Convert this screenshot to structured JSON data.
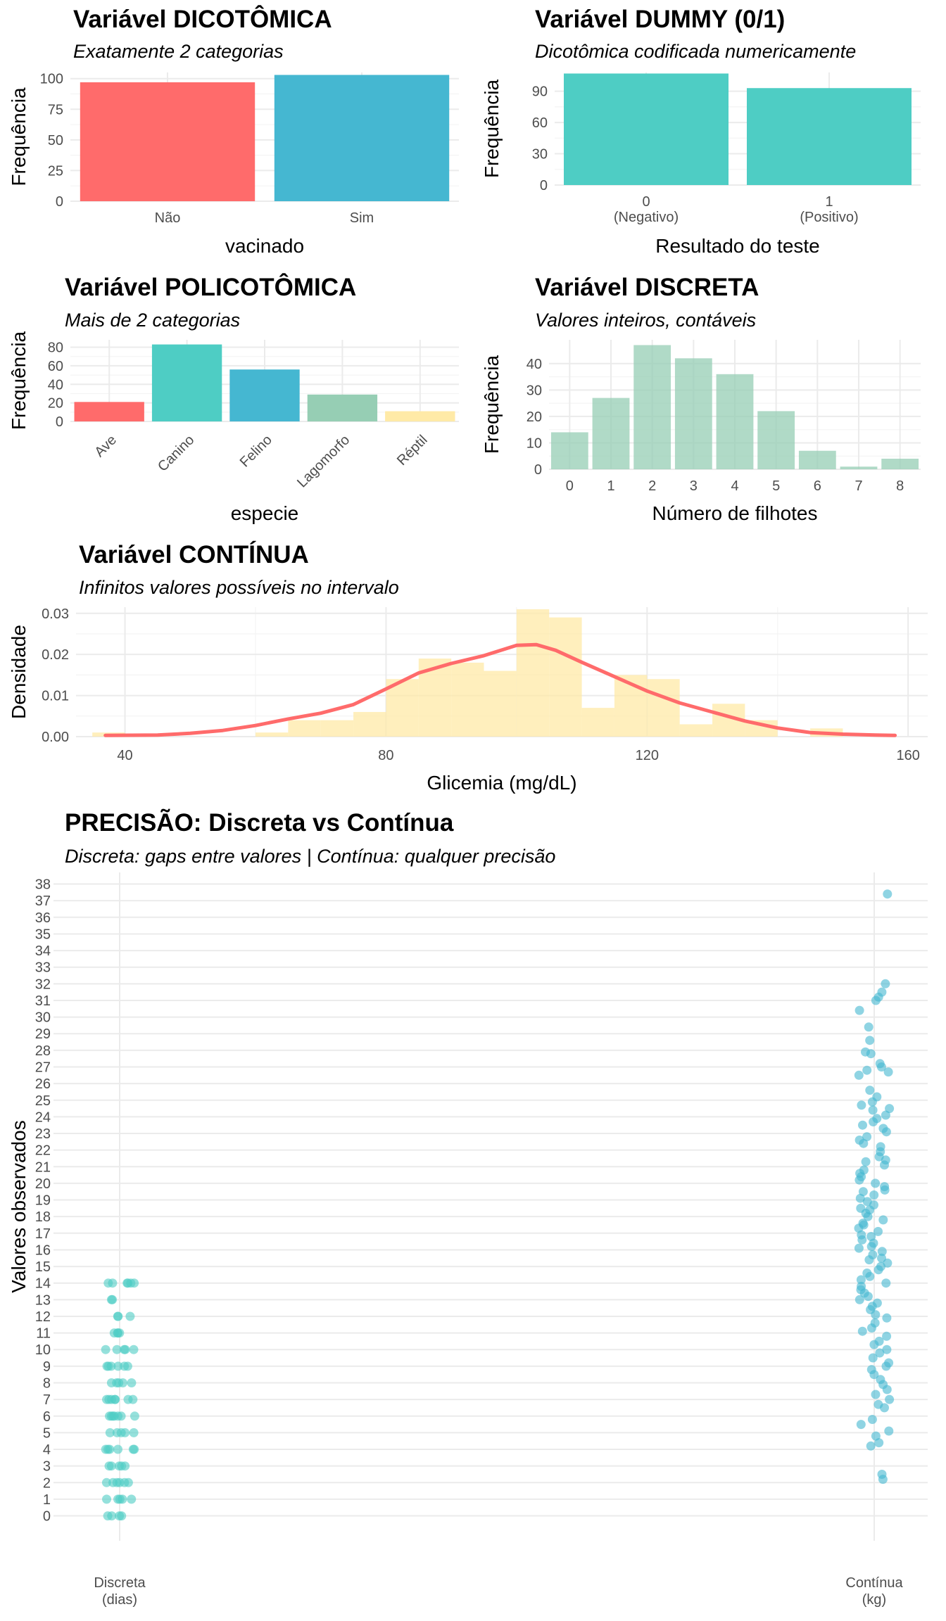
{
  "panels": {
    "dicotomica": {
      "title": "Variável DICOTÔMICA",
      "subtitle": "Exatamente 2 categorias",
      "chart_data": {
        "type": "bar",
        "categories": [
          "Não",
          "Sim"
        ],
        "values": [
          97,
          103
        ],
        "colors": [
          "#FF6B6B",
          "#45B7D1"
        ],
        "xlabel": "vacinado",
        "ylabel": "Frequência",
        "ylim": [
          0,
          105
        ],
        "yticks": [
          0,
          25,
          50,
          75,
          100
        ],
        "grid": true
      }
    },
    "dummy": {
      "title": "Variável DUMMY (0/1)",
      "subtitle": "Dicotômica codificada numericamente",
      "chart_data": {
        "type": "bar",
        "categories": [
          "0\n(Negativo)",
          "1\n(Positivo)"
        ],
        "values": [
          107,
          93
        ],
        "colors": [
          "#4ECDC4",
          "#4ECDC4"
        ],
        "xlabel": "Resultado do teste",
        "ylabel": "Frequência",
        "ylim": [
          0,
          108
        ],
        "yticks": [
          0,
          30,
          60,
          90
        ],
        "grid": true
      }
    },
    "policotomica": {
      "title": "Variável POLICOTÔMICA",
      "subtitle": "Mais de 2 categorias",
      "chart_data": {
        "type": "bar",
        "categories": [
          "Ave",
          "Canino",
          "Felino",
          "Lagomorfo",
          "Réptil"
        ],
        "values": [
          21,
          83,
          56,
          29,
          11
        ],
        "colors": [
          "#FF6B6B",
          "#4ECDC4",
          "#45B7D1",
          "#96CEB4",
          "#FFEAA7"
        ],
        "xlabel": "especie",
        "ylabel": "Frequência",
        "ylim": [
          0,
          88
        ],
        "yticks": [
          0,
          20,
          40,
          60,
          80
        ],
        "grid": true
      }
    },
    "discreta": {
      "title": "Variável DISCRETA",
      "subtitle": "Valores inteiros, contáveis",
      "chart_data": {
        "type": "bar",
        "categories": [
          "0",
          "1",
          "2",
          "3",
          "4",
          "5",
          "6",
          "7",
          "8"
        ],
        "values": [
          14,
          27,
          47,
          42,
          36,
          22,
          7,
          1,
          4
        ],
        "colors": [
          "#96CEB4"
        ],
        "opacity": 0.75,
        "xlabel": "Número de filhotes",
        "ylabel": "Frequência",
        "ylim": [
          0,
          49
        ],
        "yticks": [
          0,
          10,
          20,
          30,
          40
        ],
        "grid": true
      }
    },
    "continua": {
      "title": "Variável CONTÍNUA",
      "subtitle": "Infinitos valores possíveis no intervalo",
      "chart_data": {
        "type": "area",
        "histogram": {
          "bin_width": 5,
          "bin_starts": [
            35,
            40,
            45,
            50,
            55,
            60,
            65,
            70,
            75,
            80,
            85,
            90,
            95,
            100,
            105,
            110,
            115,
            120,
            125,
            130,
            135,
            140,
            145
          ],
          "density": [
            0.001,
            0,
            0,
            0,
            0,
            0.001,
            0.004,
            0.004,
            0.006,
            0.014,
            0.019,
            0.018,
            0.016,
            0.031,
            0.029,
            0.007,
            0.015,
            0.014,
            0.003,
            0.008,
            0.004,
            0,
            0.002
          ],
          "color": "#FFEAA7"
        },
        "density_curve": {
          "x": [
            37,
            45,
            50,
            55,
            60,
            65,
            70,
            75,
            80,
            85,
            90,
            95,
            100,
            103,
            106,
            110,
            115,
            120,
            125,
            130,
            135,
            140,
            145,
            150,
            155,
            158
          ],
          "y": [
            0.0003,
            0.0004,
            0.0008,
            0.0015,
            0.0027,
            0.0043,
            0.0057,
            0.0078,
            0.0116,
            0.0155,
            0.0178,
            0.0197,
            0.0222,
            0.0224,
            0.021,
            0.0181,
            0.0146,
            0.0111,
            0.0082,
            0.006,
            0.0038,
            0.0021,
            0.001,
            0.0006,
            0.0004,
            0.0003
          ],
          "color": "#FF6B6B"
        },
        "xlabel": "Glicemia (mg/dL)",
        "ylabel": "Densidade",
        "xlim": [
          32.5,
          163
        ],
        "ylim": [
          0,
          0.0315
        ],
        "xticks": [
          40,
          80,
          120,
          160
        ],
        "yticks": [
          "0.00",
          "0.01",
          "0.02",
          "0.03"
        ],
        "grid": true
      }
    },
    "precisao": {
      "title": "PRECISÃO: Discreta vs Contínua",
      "subtitle": "Discreta: gaps entre valores | Contínua: qualquer precisão",
      "chart_data": {
        "type": "scatter",
        "categories": [
          "Discreta\n(dias)",
          "Contínua\n(kg)"
        ],
        "ylabel": "Valores observados",
        "ylim": [
          -1.5,
          38.7
        ],
        "yticks": [
          0,
          1,
          2,
          3,
          4,
          5,
          6,
          7,
          8,
          9,
          10,
          11,
          12,
          13,
          14,
          15,
          16,
          17,
          18,
          19,
          20,
          21,
          22,
          23,
          24,
          25,
          26,
          27,
          28,
          29,
          30,
          31,
          32,
          33,
          34,
          35,
          36,
          37,
          38
        ],
        "series": [
          {
            "category": "Discreta\n(dias)",
            "color": "#4ECDC4",
            "values": [
              0,
              0,
              0,
              0,
              1,
              1,
              1,
              1,
              1,
              2,
              2,
              2,
              2,
              2,
              2,
              3,
              3,
              3,
              3,
              3,
              4,
              4,
              4,
              4,
              4,
              4,
              5,
              5,
              5,
              5,
              5,
              6,
              6,
              6,
              6,
              6,
              6,
              6,
              7,
              7,
              7,
              7,
              7,
              7,
              7,
              8,
              8,
              8,
              8,
              8,
              9,
              9,
              9,
              9,
              9,
              9,
              10,
              10,
              10,
              10,
              10,
              11,
              11,
              11,
              11,
              12,
              12,
              12,
              13,
              13,
              14,
              14,
              14,
              14,
              14,
              14
            ]
          },
          {
            "category": "Contínua\n(kg)",
            "color": "#45B7D1",
            "values": [
              37.4,
              32.0,
              31.5,
              31.2,
              31.0,
              30.4,
              29.4,
              28.6,
              27.9,
              27.8,
              27.2,
              27.0,
              26.8,
              26.7,
              26.5,
              25.6,
              25.2,
              24.9,
              24.7,
              24.5,
              24.4,
              24.1,
              23.9,
              23.7,
              23.5,
              23.3,
              23.1,
              22.8,
              22.6,
              22.4,
              22.2,
              21.9,
              21.6,
              21.4,
              21.3,
              21.1,
              20.8,
              20.6,
              20.4,
              20.2,
              20.0,
              19.8,
              19.6,
              19.5,
              19.3,
              19.1,
              18.9,
              18.7,
              18.5,
              18.4,
              18.2,
              18.0,
              17.8,
              17.6,
              17.5,
              17.3,
              17.1,
              16.9,
              16.8,
              16.6,
              16.4,
              16.2,
              16.1,
              15.9,
              15.7,
              15.5,
              15.4,
              15.2,
              15.0,
              14.8,
              14.6,
              14.4,
              14.2,
              14.0,
              13.8,
              13.6,
              13.4,
              13.2,
              13.0,
              12.8,
              12.6,
              12.4,
              12.1,
              11.9,
              11.6,
              11.3,
              11.1,
              10.8,
              10.5,
              10.3,
              10.0,
              9.8,
              9.5,
              9.2,
              9.0,
              8.8,
              8.5,
              8.2,
              7.9,
              7.6,
              7.3,
              7.0,
              6.7,
              6.5,
              5.8,
              5.5,
              5.1,
              4.8,
              4.4,
              4.2,
              2.5,
              2.2
            ]
          }
        ],
        "grid": true
      }
    }
  }
}
